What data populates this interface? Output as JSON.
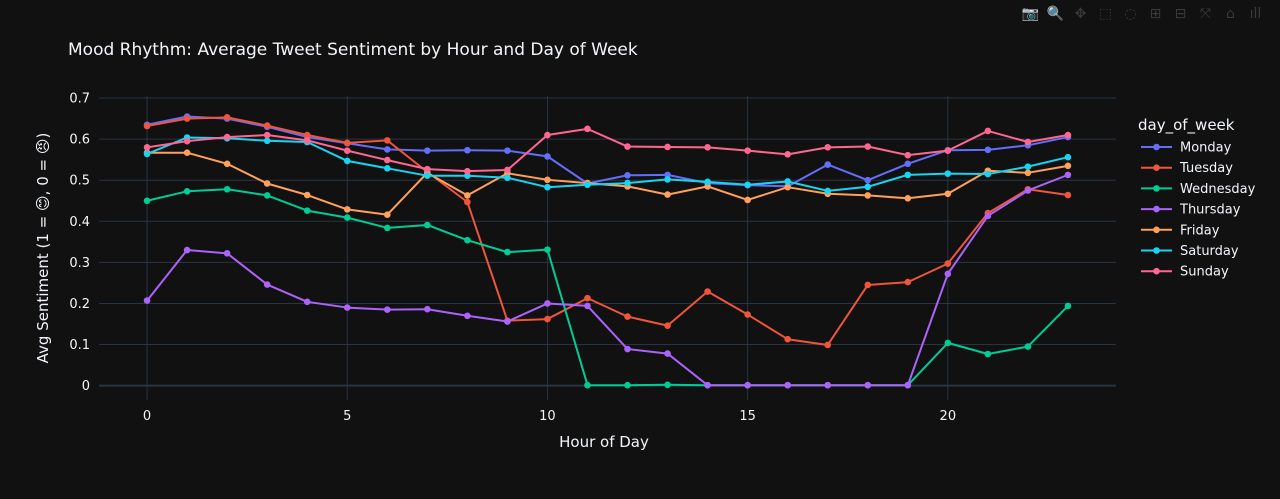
{
  "chart_data": {
    "type": "line",
    "title": "Mood Rhythm: Average Tweet Sentiment by Hour and Day of Week",
    "xlabel": "Hour of Day",
    "ylabel": "Avg Sentiment (1 = 😊, 0 = 😠)",
    "xlim": [
      -1.2,
      24.2
    ],
    "ylim": [
      -0.035,
      0.705
    ],
    "xticks": [
      0,
      5,
      10,
      15,
      20
    ],
    "yticks": [
      0,
      0.1,
      0.2,
      0.3,
      0.4,
      0.5,
      0.6,
      0.7
    ],
    "ytick_labels": [
      "0",
      "0.1",
      "0.2",
      "0.3",
      "0.4",
      "0.5",
      "0.6",
      "0.7"
    ],
    "grid": true,
    "legend_title": "day_of_week",
    "legend_position": "right",
    "x": [
      0,
      1,
      2,
      3,
      4,
      5,
      6,
      7,
      8,
      9,
      10,
      11,
      12,
      13,
      14,
      15,
      16,
      17,
      18,
      19,
      20,
      21,
      22,
      23
    ],
    "series": [
      {
        "name": "Monday",
        "color": "#636efa",
        "values": [
          0.635,
          0.655,
          0.65,
          0.63,
          0.605,
          0.59,
          0.575,
          0.572,
          0.573,
          0.572,
          0.558,
          0.492,
          0.512,
          0.513,
          0.493,
          0.488,
          0.485,
          0.538,
          0.5,
          0.54,
          0.573,
          0.574,
          0.585,
          0.605
        ]
      },
      {
        "name": "Tuesday",
        "color": "#ef553b",
        "values": [
          0.632,
          0.65,
          0.653,
          0.633,
          0.61,
          0.591,
          0.597,
          0.52,
          0.447,
          0.158,
          0.162,
          0.213,
          0.168,
          0.146,
          0.229,
          0.173,
          0.113,
          0.099,
          0.245,
          0.252,
          0.297,
          0.42,
          0.478,
          0.464
        ]
      },
      {
        "name": "Wednesday",
        "color": "#00cc96",
        "values": [
          0.45,
          0.473,
          0.478,
          0.463,
          0.426,
          0.409,
          0.384,
          0.391,
          0.354,
          0.325,
          0.331,
          0.001,
          0.001,
          0.002,
          0.001,
          0.001,
          0.001,
          0.001,
          0.001,
          0.001,
          0.104,
          0.077,
          0.095,
          0.194
        ]
      },
      {
        "name": "Thursday",
        "color": "#ab63fa",
        "values": [
          0.207,
          0.33,
          0.322,
          0.246,
          0.204,
          0.19,
          0.185,
          0.186,
          0.17,
          0.156,
          0.2,
          0.194,
          0.089,
          0.078,
          0.001,
          0.001,
          0.001,
          0.001,
          0.001,
          0.001,
          0.272,
          0.413,
          0.475,
          0.513
        ]
      },
      {
        "name": "Friday",
        "color": "#ffa15a",
        "values": [
          0.567,
          0.567,
          0.54,
          0.492,
          0.464,
          0.429,
          0.416,
          0.518,
          0.463,
          0.517,
          0.501,
          0.493,
          0.485,
          0.465,
          0.485,
          0.452,
          0.483,
          0.467,
          0.463,
          0.456,
          0.467,
          0.523,
          0.518,
          0.535
        ]
      },
      {
        "name": "Saturday",
        "color": "#19d3f3",
        "values": [
          0.564,
          0.604,
          0.602,
          0.596,
          0.593,
          0.547,
          0.529,
          0.511,
          0.511,
          0.506,
          0.483,
          0.489,
          0.493,
          0.502,
          0.496,
          0.489,
          0.497,
          0.474,
          0.484,
          0.513,
          0.516,
          0.515,
          0.533,
          0.556
        ]
      },
      {
        "name": "Sunday",
        "color": "#ff6692",
        "values": [
          0.58,
          0.595,
          0.605,
          0.61,
          0.597,
          0.572,
          0.549,
          0.527,
          0.522,
          0.525,
          0.61,
          0.625,
          0.582,
          0.581,
          0.58,
          0.572,
          0.563,
          0.58,
          0.582,
          0.561,
          0.572,
          0.62,
          0.593,
          0.61
        ]
      }
    ]
  },
  "modebar": {
    "buttons": [
      {
        "name": "camera-icon",
        "glyph": "📷"
      },
      {
        "name": "zoom-icon",
        "glyph": "🔍"
      },
      {
        "name": "pan-icon",
        "glyph": "✥"
      },
      {
        "name": "box-select-icon",
        "glyph": "⬚"
      },
      {
        "name": "lasso-select-icon",
        "glyph": "◌"
      },
      {
        "name": "zoom-in-icon",
        "glyph": "⊞"
      },
      {
        "name": "zoom-out-icon",
        "glyph": "⊟"
      },
      {
        "name": "autoscale-icon",
        "glyph": "⤧"
      },
      {
        "name": "reset-axes-icon",
        "glyph": "⌂"
      },
      {
        "name": "plotly-logo-icon",
        "glyph": "ıll"
      }
    ]
  },
  "colors": {
    "background": "#111111",
    "grid": "#283442",
    "text": "#f2f5fa"
  }
}
